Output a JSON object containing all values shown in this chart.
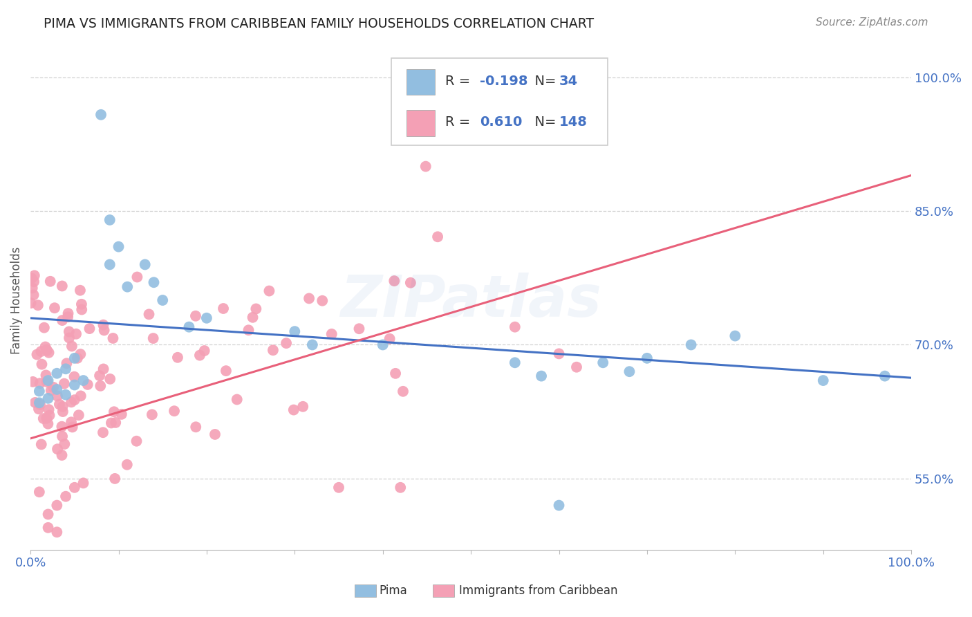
{
  "title": "PIMA VS IMMIGRANTS FROM CARIBBEAN FAMILY HOUSEHOLDS CORRELATION CHART",
  "source": "Source: ZipAtlas.com",
  "ylabel": "Family Households",
  "xlim": [
    0,
    1
  ],
  "ylim": [
    0.47,
    1.03
  ],
  "yticks": [
    0.55,
    0.7,
    0.85,
    1.0
  ],
  "ytick_labels": [
    "55.0%",
    "70.0%",
    "85.0%",
    "100.0%"
  ],
  "pima_color": "#92BEE0",
  "caribbean_color": "#F4A0B5",
  "pima_line_color": "#4472C4",
  "caribbean_line_color": "#E8607A",
  "background_color": "#ffffff",
  "grid_color": "#d0d0d0",
  "title_color": "#222222",
  "title_fontsize": 13.5,
  "pima_trend_y0": 0.73,
  "pima_trend_y1": 0.663,
  "carib_trend_y0": 0.595,
  "carib_trend_y1": 0.89,
  "R_pima": "-0.198",
  "N_pima": "34",
  "R_caribbean": "0.610",
  "N_caribbean": "148",
  "watermark": "ZIPatlas"
}
